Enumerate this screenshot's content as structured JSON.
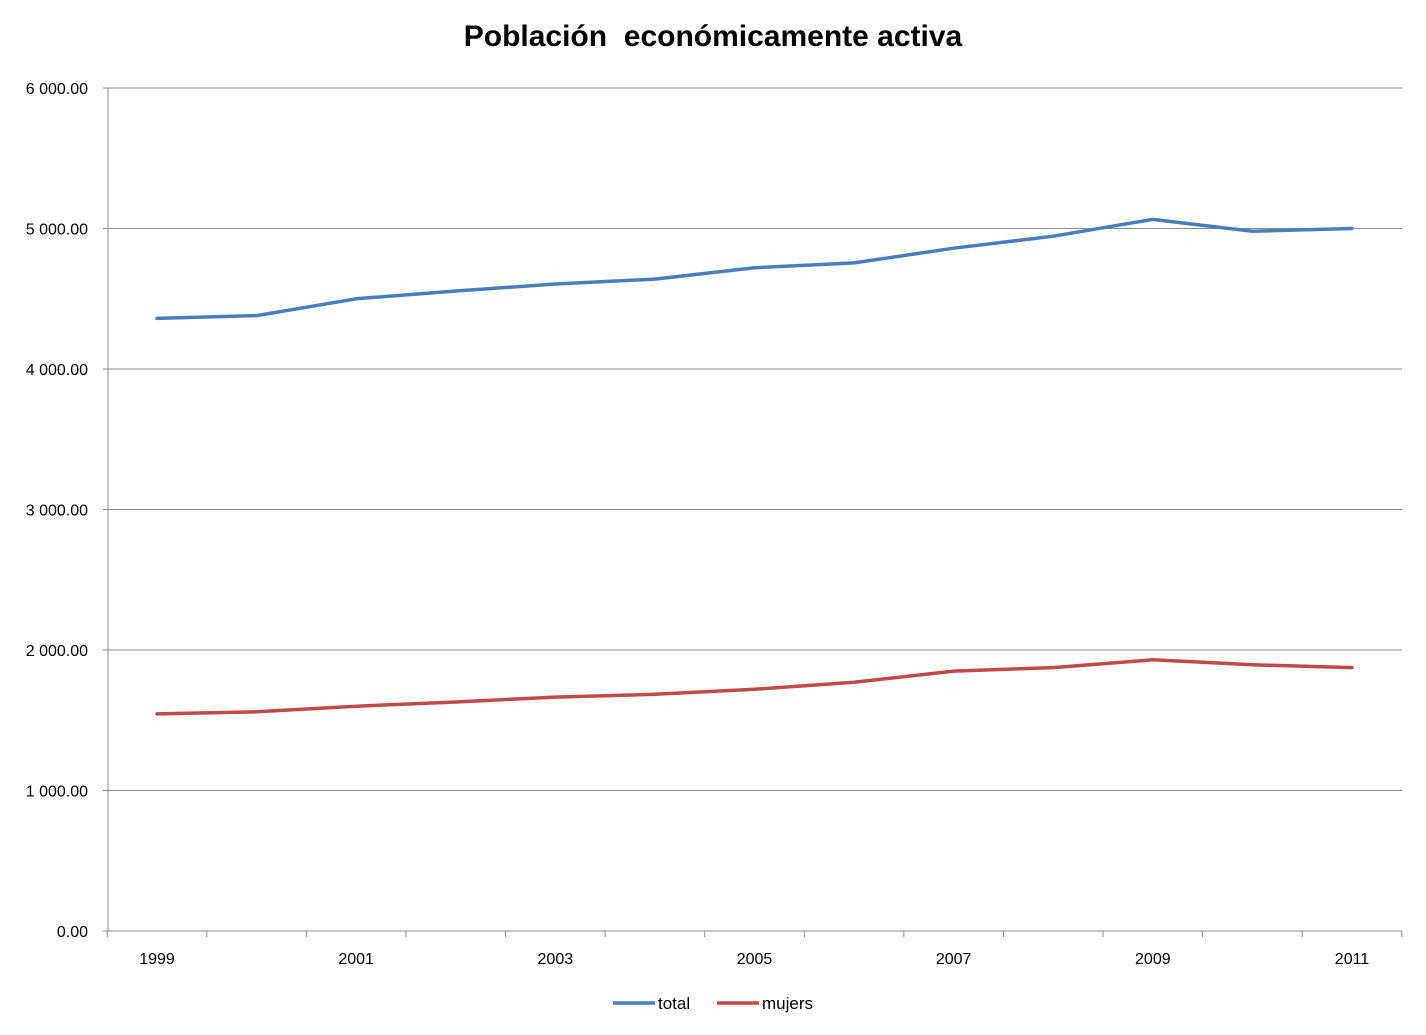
{
  "chart_data": {
    "type": "line",
    "title": "Población  económicamente activa",
    "x": [
      1999,
      2000,
      2001,
      2002,
      2003,
      2004,
      2005,
      2006,
      2007,
      2008,
      2009,
      2010,
      2011
    ],
    "x_tick_labels": [
      "1999",
      "2001",
      "2003",
      "2005",
      "2007",
      "2009",
      "2011"
    ],
    "y_tick_labels": [
      "0.00",
      "1 000.00",
      "2 000.00",
      "3 000.00",
      "4 000.00",
      "5 000.00",
      "6 000.00"
    ],
    "ylim": [
      0,
      6000
    ],
    "grid": true,
    "legend_position": "bottom",
    "series": [
      {
        "name": "total",
        "color": "#4a7ebb",
        "values": [
          4360,
          4380,
          4500,
          4555,
          4605,
          4640,
          4720,
          4755,
          4860,
          4945,
          5065,
          4980,
          5000
        ]
      },
      {
        "name": "mujers",
        "color": "#be4b48",
        "values": [
          1545,
          1560,
          1600,
          1630,
          1665,
          1685,
          1720,
          1770,
          1850,
          1875,
          1930,
          1895,
          1875
        ]
      }
    ]
  }
}
